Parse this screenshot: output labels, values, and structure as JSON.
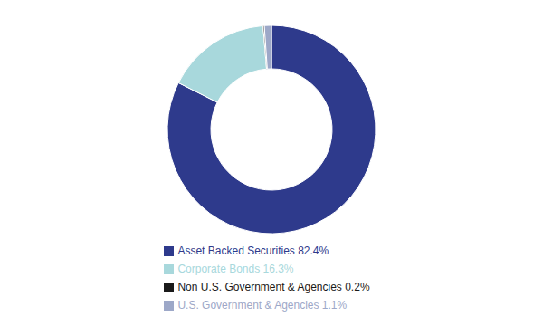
{
  "chart_data": {
    "type": "pie",
    "categories": [
      "Asset Backed Securities 82.4%",
      "Corporate Bonds 16.3%",
      "Non U.S. Government & Agencies 0.2%",
      "U.S. Government & Agencies 1.1%"
    ],
    "values": [
      82.4,
      16.3,
      0.2,
      1.1
    ],
    "colors": [
      "#2E3A8C",
      "#A8D8DC",
      "#1A1A1A",
      "#9DA8C8"
    ],
    "legend": "bottom"
  }
}
